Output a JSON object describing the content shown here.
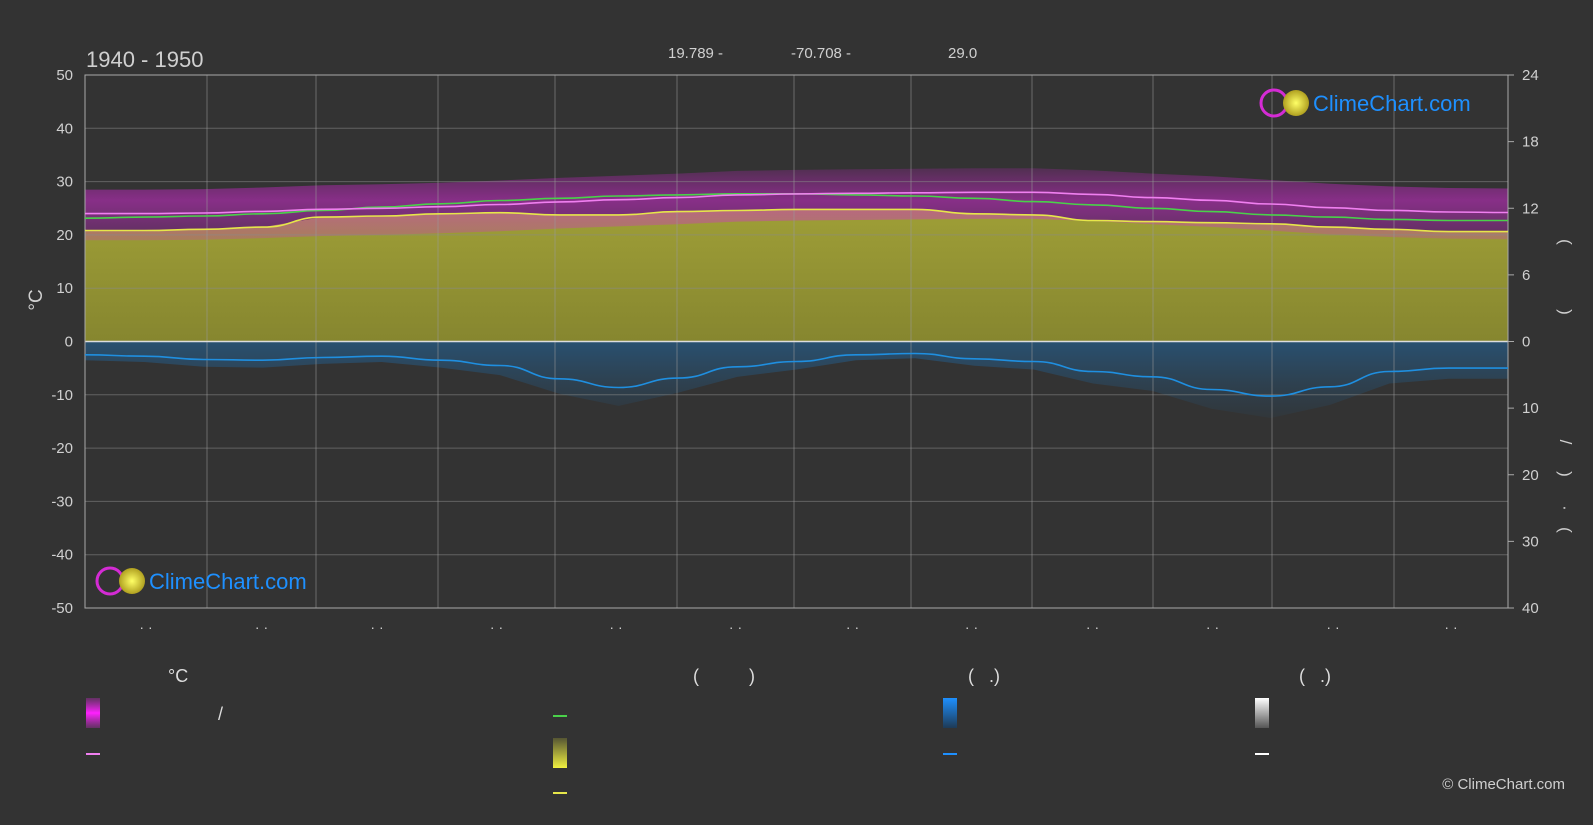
{
  "header": {
    "period": "1940 - 1950",
    "lat": "19.789 -",
    "lon": "-70.708 -",
    "elev": "29.0"
  },
  "brand": {
    "name": "ClimeChart.com",
    "copyright": "© ClimeChart.com"
  },
  "colors": {
    "background": "#333333",
    "temp_range": "#d42bd4",
    "daylight": "#4ad14a",
    "max_temp": "#f07ff0",
    "sunshine": "#c8c832",
    "sunshine_line": "#e6e64a",
    "precip": "#1f8fe0",
    "brand_blue": "#1e90ff"
  },
  "chart_data": {
    "type": "line",
    "x_ticks": [
      "· ·",
      "· ·",
      "· ·",
      "· ·",
      "· ·",
      "· ·",
      "· ·",
      "· ·",
      "· ·",
      "· ·",
      "· ·",
      "· ·"
    ],
    "months": 12,
    "ylabel_left": "°C",
    "ylim_left": [
      -50,
      50
    ],
    "yticks_left": [
      50,
      40,
      30,
      20,
      10,
      0,
      -10,
      -20,
      -30,
      -40,
      -50
    ],
    "yticks_right_top": [
      24,
      18,
      12,
      6,
      0
    ],
    "yticks_right_bottom": [
      10,
      20,
      30,
      40
    ],
    "ylim_right_top": [
      0,
      24
    ],
    "ylim_right_bottom": [
      0,
      40
    ],
    "right_axis_glyphs": [
      "(",
      ")",
      "/",
      "(",
      "·",
      ")"
    ],
    "grid": true,
    "series": [
      {
        "key": "daylight",
        "unit": "h",
        "axis": "right_top",
        "x": [
          0,
          0.5,
          1,
          1.5,
          2,
          2.5,
          3,
          3.5,
          4,
          4.5,
          5,
          5.5,
          6,
          6.5,
          7,
          7.5,
          8,
          8.5,
          9,
          9.5,
          10,
          10.5,
          11,
          11.5,
          12
        ],
        "values": [
          11.1,
          11.2,
          11.3,
          11.5,
          11.8,
          12.1,
          12.4,
          12.7,
          12.9,
          13.1,
          13.2,
          13.3,
          13.3,
          13.2,
          13.1,
          12.9,
          12.6,
          12.3,
          12.0,
          11.7,
          11.4,
          11.2,
          11.0,
          10.9,
          10.9
        ]
      },
      {
        "key": "max_temp",
        "unit": "°C",
        "axis": "left",
        "x": [
          0,
          0.5,
          1,
          1.5,
          2,
          2.5,
          3,
          3.5,
          4,
          4.5,
          5,
          5.5,
          6,
          6.5,
          7,
          7.5,
          8,
          8.5,
          9,
          9.5,
          10,
          10.5,
          11,
          11.5,
          12
        ],
        "values": [
          24.0,
          24.0,
          24.1,
          24.4,
          24.8,
          25.0,
          25.3,
          25.7,
          26.2,
          26.6,
          27.0,
          27.5,
          27.7,
          27.8,
          27.9,
          28.0,
          28.0,
          27.6,
          27.0,
          26.5,
          25.8,
          25.1,
          24.6,
          24.3,
          24.2
        ]
      },
      {
        "key": "sunshine",
        "unit": "h",
        "axis": "right_top",
        "x": [
          0,
          0.5,
          1,
          1.5,
          2,
          2.5,
          3,
          3.5,
          4,
          4.5,
          5,
          5.5,
          6,
          6.5,
          7,
          7.5,
          8,
          8.5,
          9,
          9.5,
          10,
          10.5,
          11,
          11.5,
          12
        ],
        "values": [
          10.0,
          10.0,
          10.1,
          10.3,
          11.2,
          11.3,
          11.5,
          11.6,
          11.4,
          11.4,
          11.7,
          11.8,
          11.9,
          11.9,
          11.9,
          11.5,
          11.4,
          10.9,
          10.8,
          10.7,
          10.6,
          10.3,
          10.1,
          9.9,
          9.9
        ]
      },
      {
        "key": "precip",
        "unit": "mm",
        "axis": "right_bottom",
        "x": [
          0,
          0.5,
          1,
          1.5,
          2,
          2.5,
          3,
          3.5,
          4,
          4.5,
          5,
          5.5,
          6,
          6.5,
          7,
          7.5,
          8,
          8.5,
          9,
          9.5,
          10,
          10.5,
          11,
          11.5,
          12
        ],
        "values": [
          2.0,
          2.2,
          2.7,
          2.8,
          2.4,
          2.2,
          2.8,
          3.6,
          5.6,
          6.9,
          5.5,
          3.8,
          3.0,
          2.0,
          1.8,
          2.6,
          3.0,
          4.5,
          5.3,
          7.2,
          8.2,
          6.8,
          4.5,
          4.0,
          4.0
        ]
      }
    ]
  },
  "legend": {
    "col1_title": "°C",
    "col1_item1": "/",
    "col2_title": "(          )",
    "col3_title": "(   .)",
    "col4_title": "(   .)"
  }
}
